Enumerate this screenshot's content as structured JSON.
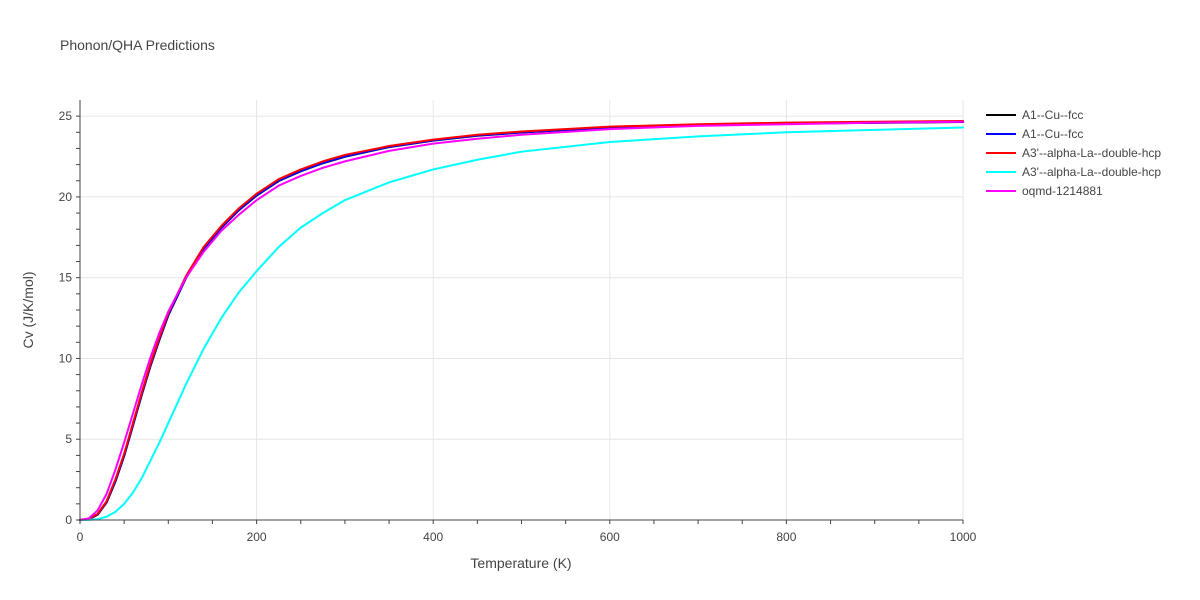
{
  "chart_data": {
    "type": "line",
    "title": "Phonon/QHA Predictions",
    "xlabel": "Temperature (K)",
    "ylabel": "Cv (J/K/mol)",
    "xlim": [
      0,
      1000
    ],
    "ylim": [
      0,
      26
    ],
    "x_ticks": [
      0,
      200,
      400,
      600,
      800,
      1000
    ],
    "y_ticks": [
      0,
      5,
      10,
      15,
      20,
      25
    ],
    "grid": true,
    "legend_position": "right",
    "x": [
      0,
      10,
      20,
      30,
      40,
      50,
      60,
      70,
      80,
      90,
      100,
      120,
      140,
      160,
      180,
      200,
      225,
      250,
      275,
      300,
      350,
      400,
      450,
      500,
      600,
      700,
      800,
      900,
      1000
    ],
    "series": [
      {
        "name": "A1--Cu--fcc",
        "color": "#000000",
        "values": [
          0,
          0.05,
          0.35,
          1.1,
          2.4,
          4.0,
          5.9,
          7.8,
          9.6,
          11.2,
          12.7,
          15.0,
          16.8,
          18.1,
          19.2,
          20.1,
          21.0,
          21.6,
          22.1,
          22.5,
          23.1,
          23.5,
          23.8,
          24.0,
          24.3,
          24.45,
          24.55,
          24.6,
          24.65
        ],
        "width": 2.5
      },
      {
        "name": "A1--Cu--fcc",
        "color": "#0000ff",
        "values": [
          0,
          0.05,
          0.35,
          1.1,
          2.4,
          4.0,
          5.9,
          7.8,
          9.6,
          11.2,
          12.7,
          15.0,
          16.8,
          18.1,
          19.2,
          20.1,
          21.0,
          21.6,
          22.1,
          22.5,
          23.1,
          23.5,
          23.8,
          24.0,
          24.3,
          24.45,
          24.55,
          24.6,
          24.65
        ],
        "width": 2
      },
      {
        "name": "A3'--alpha-La--double-hcp",
        "color": "#ff0000",
        "values": [
          0,
          0.06,
          0.38,
          1.15,
          2.5,
          4.1,
          6.0,
          7.9,
          9.7,
          11.3,
          12.8,
          15.1,
          16.9,
          18.2,
          19.3,
          20.2,
          21.1,
          21.7,
          22.2,
          22.6,
          23.15,
          23.55,
          23.85,
          24.05,
          24.35,
          24.5,
          24.6,
          24.65,
          24.7
        ],
        "width": 2
      },
      {
        "name": "A3'--alpha-La--double-hcp",
        "color": "#00ffff",
        "values": [
          0,
          0.01,
          0.05,
          0.2,
          0.5,
          1.0,
          1.7,
          2.6,
          3.7,
          4.8,
          6.0,
          8.4,
          10.6,
          12.5,
          14.1,
          15.4,
          16.9,
          18.1,
          19.0,
          19.8,
          20.9,
          21.7,
          22.3,
          22.8,
          23.4,
          23.75,
          24.0,
          24.15,
          24.3
        ],
        "width": 2
      },
      {
        "name": "oqmd-1214881",
        "color": "#ff00ff",
        "values": [
          0,
          0.1,
          0.6,
          1.6,
          3.1,
          4.8,
          6.6,
          8.4,
          10.1,
          11.6,
          12.9,
          15.0,
          16.6,
          17.9,
          18.9,
          19.8,
          20.7,
          21.3,
          21.8,
          22.2,
          22.85,
          23.3,
          23.6,
          23.85,
          24.2,
          24.4,
          24.5,
          24.6,
          24.65
        ],
        "width": 2
      }
    ]
  }
}
